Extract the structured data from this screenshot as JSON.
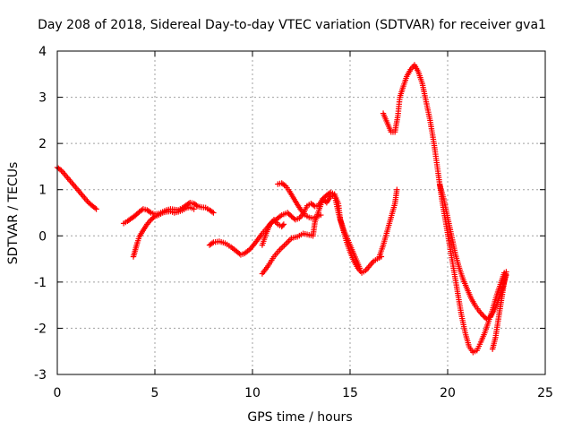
{
  "chart_data": {
    "type": "scatter",
    "title": "Day 208 of 2018, Sidereal Day-to-day VTEC variation (SDTVAR) for receiver gva1",
    "xlabel": "GPS time / hours",
    "ylabel": "SDTVAR / TECUs",
    "xlim": [
      0,
      25
    ],
    "ylim": [
      -3,
      4
    ],
    "xticks": [
      0,
      5,
      10,
      15,
      20,
      25
    ],
    "yticks": [
      -3,
      -2,
      -1,
      0,
      1,
      2,
      3,
      4
    ],
    "grid": true,
    "marker": "+",
    "color": "#ff0000",
    "series": [
      {
        "segments": [
          [
            [
              0.0,
              1.48
            ],
            [
              0.2,
              1.42
            ],
            [
              0.4,
              1.32
            ],
            [
              0.6,
              1.22
            ],
            [
              0.8,
              1.12
            ],
            [
              1.0,
              1.02
            ],
            [
              1.2,
              0.92
            ],
            [
              1.4,
              0.82
            ],
            [
              1.6,
              0.72
            ],
            [
              1.8,
              0.65
            ],
            [
              2.0,
              0.58
            ]
          ],
          [
            [
              3.4,
              0.27
            ],
            [
              3.6,
              0.32
            ],
            [
              3.8,
              0.38
            ],
            [
              4.0,
              0.44
            ],
            [
              4.2,
              0.52
            ],
            [
              4.4,
              0.58
            ],
            [
              4.6,
              0.56
            ],
            [
              4.8,
              0.5
            ],
            [
              5.0,
              0.47
            ],
            [
              5.2,
              0.48
            ],
            [
              5.4,
              0.52
            ],
            [
              5.6,
              0.56
            ],
            [
              5.8,
              0.58
            ],
            [
              6.0,
              0.57
            ],
            [
              6.2,
              0.56
            ],
            [
              6.4,
              0.6
            ],
            [
              6.6,
              0.66
            ],
            [
              6.8,
              0.72
            ],
            [
              7.0,
              0.7
            ],
            [
              7.2,
              0.64
            ],
            [
              7.4,
              0.62
            ],
            [
              7.6,
              0.61
            ],
            [
              7.8,
              0.56
            ],
            [
              8.0,
              0.5
            ]
          ],
          [
            [
              3.9,
              -0.45
            ],
            [
              4.0,
              -0.3
            ],
            [
              4.1,
              -0.15
            ],
            [
              4.2,
              -0.02
            ],
            [
              4.4,
              0.12
            ],
            [
              4.6,
              0.25
            ],
            [
              4.8,
              0.35
            ],
            [
              5.0,
              0.42
            ],
            [
              5.2,
              0.45
            ],
            [
              5.4,
              0.5
            ],
            [
              5.6,
              0.52
            ],
            [
              5.8,
              0.53
            ],
            [
              6.0,
              0.5
            ],
            [
              6.2,
              0.52
            ],
            [
              6.4,
              0.55
            ],
            [
              6.6,
              0.6
            ],
            [
              6.8,
              0.62
            ],
            [
              7.0,
              0.58
            ]
          ],
          [
            [
              7.8,
              -0.2
            ],
            [
              8.0,
              -0.14
            ],
            [
              8.3,
              -0.12
            ],
            [
              8.6,
              -0.16
            ],
            [
              8.9,
              -0.24
            ],
            [
              9.2,
              -0.34
            ],
            [
              9.4,
              -0.41
            ],
            [
              9.6,
              -0.38
            ],
            [
              9.9,
              -0.28
            ],
            [
              10.2,
              -0.12
            ],
            [
              10.5,
              0.05
            ],
            [
              10.8,
              0.2
            ],
            [
              11.0,
              0.3
            ],
            [
              11.2,
              0.35
            ],
            [
              11.5,
              0.45
            ],
            [
              11.8,
              0.5
            ],
            [
              12.0,
              0.42
            ],
            [
              12.2,
              0.35
            ],
            [
              12.4,
              0.38
            ],
            [
              12.6,
              0.48
            ],
            [
              12.8,
              0.65
            ],
            [
              13.0,
              0.7
            ],
            [
              13.2,
              0.64
            ],
            [
              13.4,
              0.66
            ],
            [
              13.6,
              0.8
            ],
            [
              13.8,
              0.88
            ],
            [
              14.0,
              0.94
            ],
            [
              14.2,
              0.9
            ],
            [
              14.4,
              0.5
            ],
            [
              14.6,
              0.2
            ],
            [
              14.8,
              -0.1
            ],
            [
              15.0,
              -0.35
            ],
            [
              15.2,
              -0.55
            ],
            [
              15.4,
              -0.7
            ],
            [
              15.6,
              -0.8
            ],
            [
              15.8,
              -0.75
            ],
            [
              16.0,
              -0.65
            ],
            [
              16.2,
              -0.55
            ],
            [
              16.4,
              -0.5
            ],
            [
              16.6,
              -0.45
            ]
          ],
          [
            [
              10.5,
              -0.82
            ],
            [
              10.8,
              -0.65
            ],
            [
              11.1,
              -0.45
            ],
            [
              11.4,
              -0.3
            ],
            [
              11.7,
              -0.18
            ],
            [
              12.0,
              -0.05
            ],
            [
              12.3,
              -0.02
            ],
            [
              12.6,
              0.05
            ],
            [
              12.9,
              0.02
            ],
            [
              13.1,
              0.0
            ],
            [
              13.2,
              0.3
            ],
            [
              13.4,
              0.55
            ],
            [
              13.6,
              0.8
            ],
            [
              13.8,
              0.72
            ],
            [
              14.0,
              0.85
            ],
            [
              14.2,
              0.9
            ],
            [
              14.4,
              0.7
            ],
            [
              14.5,
              0.35
            ],
            [
              14.7,
              0.1
            ],
            [
              14.9,
              -0.1
            ],
            [
              15.1,
              -0.3
            ],
            [
              15.3,
              -0.5
            ],
            [
              15.5,
              -0.7
            ]
          ],
          [
            [
              10.5,
              -0.2
            ],
            [
              10.7,
              0.05
            ],
            [
              10.9,
              0.25
            ],
            [
              11.1,
              0.35
            ],
            [
              11.3,
              0.25
            ],
            [
              11.5,
              0.2
            ],
            [
              11.6,
              0.25
            ]
          ],
          [
            [
              11.3,
              1.12
            ],
            [
              11.5,
              1.14
            ],
            [
              11.7,
              1.08
            ],
            [
              11.9,
              0.96
            ],
            [
              12.1,
              0.82
            ],
            [
              12.3,
              0.68
            ],
            [
              12.5,
              0.55
            ],
            [
              12.7,
              0.45
            ],
            [
              12.9,
              0.4
            ],
            [
              13.1,
              0.38
            ],
            [
              13.3,
              0.42
            ],
            [
              13.5,
              0.45
            ]
          ],
          [
            [
              16.5,
              -0.45
            ],
            [
              16.7,
              -0.2
            ],
            [
              16.9,
              0.1
            ],
            [
              17.1,
              0.4
            ],
            [
              17.3,
              0.7
            ],
            [
              17.4,
              1.0
            ]
          ],
          [
            [
              16.7,
              2.65
            ],
            [
              16.9,
              2.45
            ],
            [
              17.1,
              2.25
            ],
            [
              17.3,
              2.25
            ],
            [
              17.45,
              2.6
            ],
            [
              17.55,
              3.0
            ],
            [
              17.7,
              3.2
            ],
            [
              17.9,
              3.45
            ],
            [
              18.1,
              3.6
            ],
            [
              18.3,
              3.7
            ],
            [
              18.5,
              3.55
            ],
            [
              18.7,
              3.3
            ],
            [
              18.9,
              2.9
            ],
            [
              19.1,
              2.5
            ],
            [
              19.3,
              2.0
            ],
            [
              19.5,
              1.4
            ],
            [
              19.7,
              0.8
            ],
            [
              19.9,
              0.3
            ],
            [
              20.1,
              -0.2
            ],
            [
              20.3,
              -0.7
            ],
            [
              20.5,
              -1.2
            ],
            [
              20.7,
              -1.7
            ],
            [
              20.9,
              -2.1
            ],
            [
              21.1,
              -2.4
            ],
            [
              21.3,
              -2.52
            ],
            [
              21.5,
              -2.48
            ],
            [
              21.7,
              -2.3
            ],
            [
              21.9,
              -2.1
            ],
            [
              22.1,
              -1.85
            ],
            [
              22.3,
              -1.6
            ],
            [
              22.5,
              -1.3
            ],
            [
              22.7,
              -1.05
            ],
            [
              22.9,
              -0.8
            ]
          ],
          [
            [
              19.6,
              1.1
            ],
            [
              19.8,
              0.8
            ],
            [
              20.0,
              0.4
            ],
            [
              20.2,
              0.0
            ],
            [
              20.4,
              -0.4
            ],
            [
              20.6,
              -0.7
            ],
            [
              20.8,
              -0.95
            ],
            [
              21.0,
              -1.15
            ],
            [
              21.2,
              -1.35
            ],
            [
              21.4,
              -1.5
            ],
            [
              21.6,
              -1.62
            ],
            [
              21.8,
              -1.72
            ],
            [
              22.0,
              -1.8
            ],
            [
              22.2,
              -1.75
            ],
            [
              22.4,
              -1.6
            ],
            [
              22.6,
              -1.4
            ],
            [
              22.8,
              -1.15
            ],
            [
              23.0,
              -0.85
            ]
          ],
          [
            [
              22.3,
              -2.45
            ],
            [
              22.45,
              -2.2
            ],
            [
              22.6,
              -1.8
            ],
            [
              22.75,
              -1.4
            ],
            [
              22.9,
              -1.0
            ],
            [
              23.0,
              -0.78
            ]
          ]
        ]
      }
    ]
  }
}
